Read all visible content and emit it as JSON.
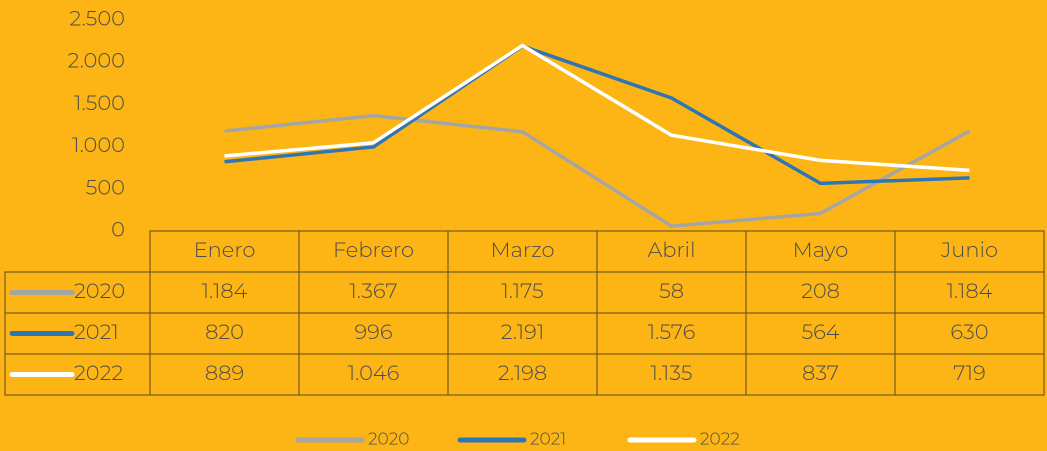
{
  "chart_data": {
    "type": "line",
    "categories": [
      "Enero",
      "Febrero",
      "Marzo",
      "Abril",
      "Mayo",
      "Junio"
    ],
    "series": [
      {
        "name": "2020",
        "color": "#a5a5a5",
        "values": [
          1184,
          1367,
          1175,
          58,
          208,
          1184
        ],
        "value_labels": [
          "1.184",
          "1.367",
          "1.175",
          "58",
          "208",
          "1.184"
        ]
      },
      {
        "name": "2021",
        "color": "#2e75b6",
        "values": [
          820,
          996,
          2191,
          1576,
          564,
          630
        ],
        "value_labels": [
          "820",
          "996",
          "2.191",
          "1.576",
          "564",
          "630"
        ]
      },
      {
        "name": "2022",
        "color": "#ffffff",
        "values": [
          889,
          1046,
          2198,
          1135,
          837,
          719
        ],
        "value_labels": [
          "889",
          "1.046",
          "2.198",
          "1.135",
          "837",
          "719"
        ]
      }
    ],
    "ylim": [
      0,
      2500
    ],
    "yticks": [
      0,
      500,
      {
        "value": 1000,
        "label": "1.000"
      },
      {
        "value": 1500,
        "label": "1.500"
      },
      {
        "value": 2000,
        "label": "2.000"
      },
      {
        "value": 2500,
        "label": "2.500"
      }
    ],
    "grid": false,
    "legend": "bottom"
  }
}
